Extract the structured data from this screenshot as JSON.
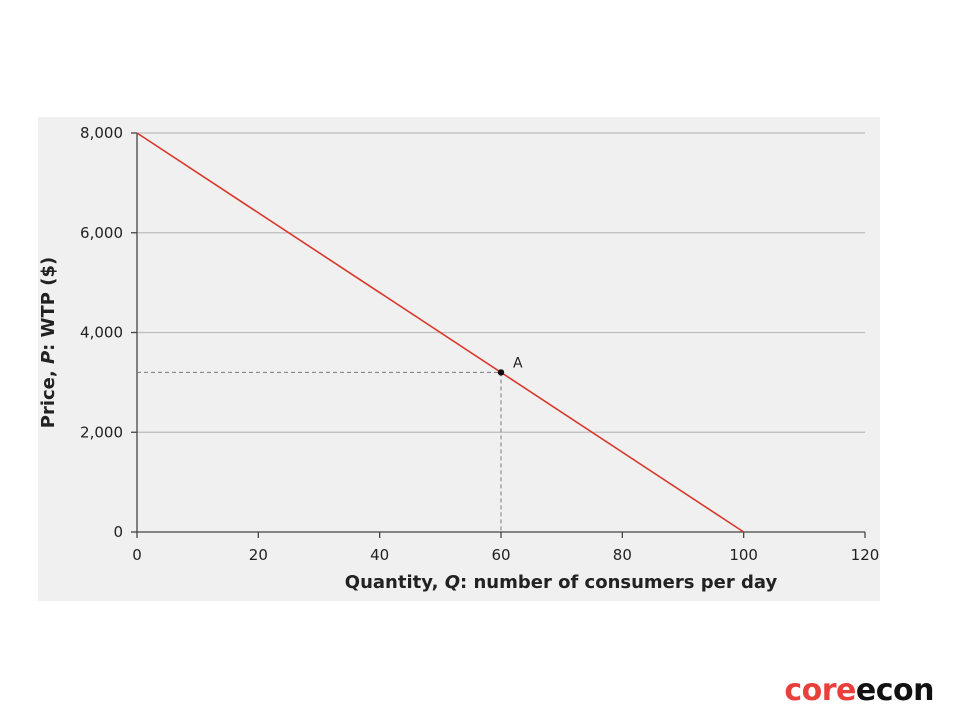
{
  "chart_data": {
    "type": "line",
    "xlabel_prefix": "Quantity, ",
    "xlabel_var": "Q",
    "xlabel_suffix": ": number of consumers per day",
    "ylabel_prefix": "Price, ",
    "ylabel_var": "P",
    "ylabel_suffix": ": WTP ($)",
    "xlim": [
      0,
      120
    ],
    "ylim": [
      0,
      8000
    ],
    "xticks": [
      0,
      20,
      40,
      60,
      80,
      100,
      120
    ],
    "xtick_labels": [
      "0",
      "20",
      "40",
      "60",
      "80",
      "100",
      "120"
    ],
    "yticks": [
      0,
      2000,
      4000,
      6000,
      8000
    ],
    "ytick_labels": [
      "0",
      "2,000",
      "4,000",
      "6,000",
      "8,000"
    ],
    "grid": "horizontal",
    "series": [
      {
        "x": [
          0,
          100
        ],
        "y": [
          8000,
          0
        ],
        "color": "#d7382a"
      }
    ],
    "point": {
      "label": "A",
      "x": 60,
      "y": 3200
    }
  },
  "logo": {
    "part1": "core",
    "part2": "econ",
    "color1": "#e8403b",
    "color2": "#111111"
  },
  "colors": {
    "plot_background": "#f0f0f0",
    "grid": "#bdbdbd",
    "axis": "#444444",
    "guide": "#7a7a7a"
  }
}
